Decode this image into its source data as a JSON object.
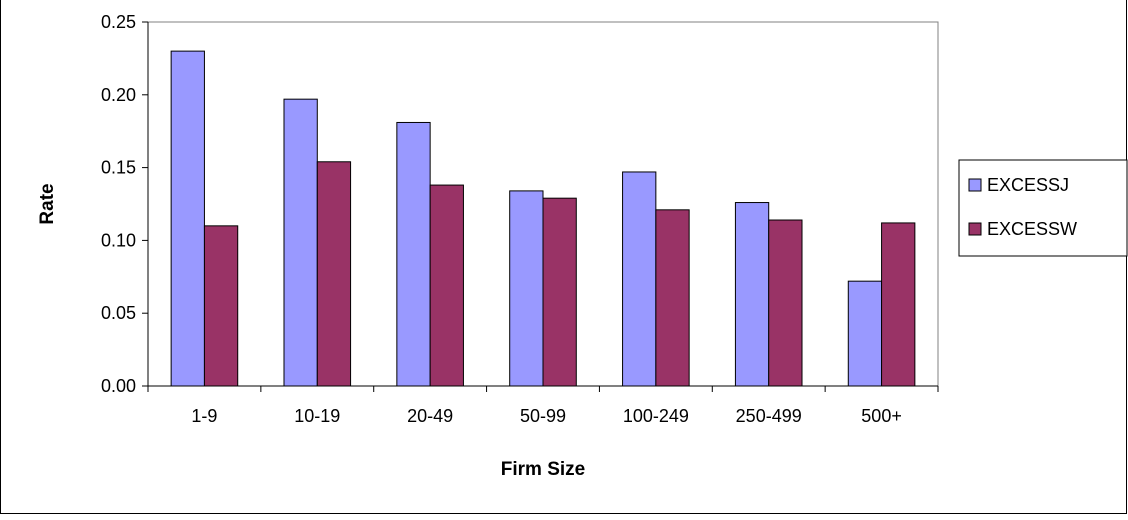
{
  "chart_data": {
    "type": "bar",
    "title": "",
    "xlabel": "Firm Size",
    "ylabel": "Rate",
    "categories": [
      "1-9",
      "10-19",
      "20-49",
      "50-99",
      "100-249",
      "250-499",
      "500+"
    ],
    "series": [
      {
        "name": "EXCESSJ",
        "color": "#9999ff",
        "values": [
          0.23,
          0.197,
          0.181,
          0.134,
          0.147,
          0.126,
          0.072
        ]
      },
      {
        "name": "EXCESSW",
        "color": "#993366",
        "values": [
          0.11,
          0.154,
          0.138,
          0.129,
          0.121,
          0.114,
          0.112
        ]
      }
    ],
    "ylim": [
      0,
      0.25
    ],
    "yticks": [
      "0.00",
      "0.05",
      "0.10",
      "0.15",
      "0.20",
      "0.25"
    ],
    "grid": false,
    "legend_position": "right"
  }
}
